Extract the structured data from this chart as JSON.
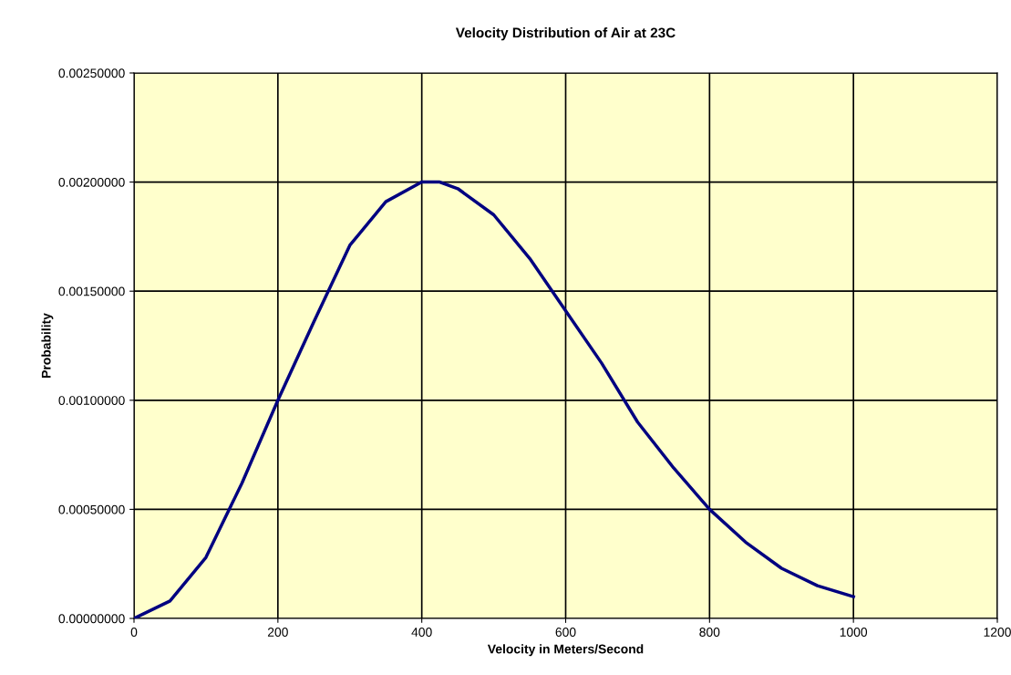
{
  "chart_data": {
    "type": "line",
    "title": "Velocity Distribution of Air at 23C",
    "xlabel": "Velocity in Meters/Second",
    "ylabel": "Probability",
    "series": [
      {
        "color": "#000080",
        "x": [
          0,
          50,
          100,
          150,
          200,
          250,
          300,
          350,
          400,
          425,
          450,
          500,
          550,
          600,
          650,
          700,
          750,
          800,
          850,
          900,
          950,
          1000
        ],
        "values": [
          0,
          8e-05,
          0.00028,
          0.00062,
          0.001,
          0.00136,
          0.00171,
          0.00191,
          0.002,
          0.002,
          0.00197,
          0.00185,
          0.00165,
          0.00141,
          0.00117,
          0.0009,
          0.00069,
          0.0005,
          0.00035,
          0.00023,
          0.00015,
          0.0001
        ]
      }
    ],
    "xlim": [
      0,
      1200
    ],
    "xticks": [
      0,
      200,
      400,
      600,
      800,
      1000,
      1200
    ],
    "ylim": [
      0,
      0.0025
    ],
    "yticks": [
      {
        "value": 0,
        "label": "0.00000000"
      },
      {
        "value": 0.0005,
        "label": "0.00050000"
      },
      {
        "value": 0.001,
        "label": "0.00100000"
      },
      {
        "value": 0.0015,
        "label": "0.00150000"
      },
      {
        "value": 0.002,
        "label": "0.00200000"
      },
      {
        "value": 0.0025,
        "label": "0.00250000"
      }
    ],
    "grid": true,
    "legend": false,
    "marker": "none",
    "line_style": "solid"
  }
}
